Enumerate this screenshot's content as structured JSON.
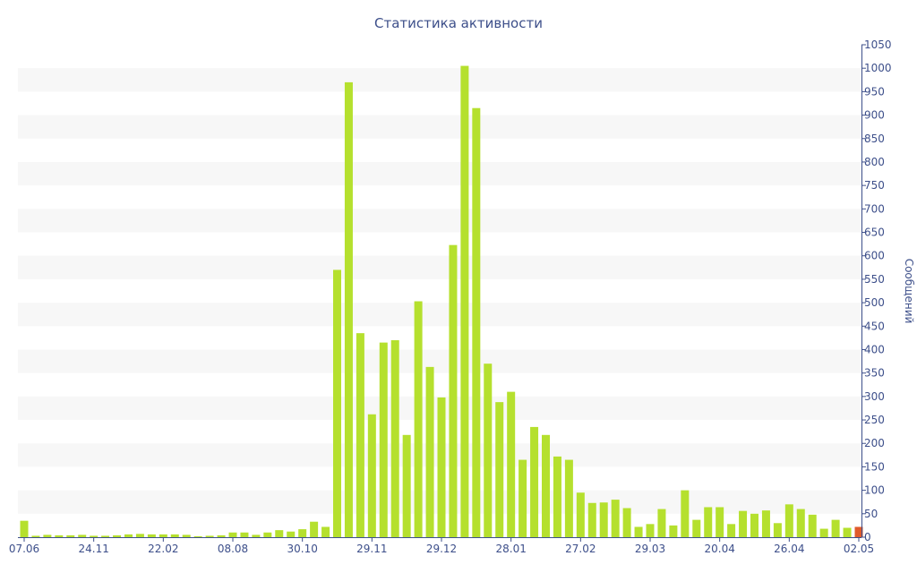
{
  "chart_data": {
    "type": "bar",
    "title": "Статистика активности",
    "ylabel": "Сообщений",
    "xlabel": "",
    "ylim": [
      0,
      1050
    ],
    "y_ticks": [
      0,
      50,
      100,
      150,
      200,
      250,
      300,
      350,
      400,
      450,
      500,
      550,
      600,
      650,
      700,
      750,
      800,
      850,
      900,
      950,
      1000,
      1050
    ],
    "y_axis_side": "right",
    "grid": "alternating horizontal bands",
    "x_tick_labels": [
      "07.06",
      "24.11",
      "22.02",
      "08.08",
      "30.10",
      "29.11",
      "29.12",
      "28.01",
      "27.02",
      "29.03",
      "20.04",
      "26.04",
      "02.05"
    ],
    "x_tick_label_bar_index": [
      0,
      6,
      12,
      18,
      24,
      30,
      36,
      42,
      48,
      54,
      60,
      66,
      72
    ],
    "colors": {
      "bar": "#b5e02e",
      "highlight": "#e05a2b",
      "text": "#3d4f8a",
      "band": "#f7f7f7"
    },
    "highlight_index": 72,
    "values": [
      35,
      3,
      5,
      4,
      4,
      5,
      3,
      3,
      4,
      6,
      7,
      6,
      6,
      6,
      5,
      2,
      3,
      4,
      10,
      10,
      5,
      10,
      15,
      12,
      17,
      33,
      22,
      570,
      970,
      435,
      262,
      415,
      420,
      218,
      503,
      363,
      298,
      623,
      1005,
      915,
      370,
      288,
      310,
      165,
      235,
      218,
      172,
      165,
      95,
      73,
      74,
      80,
      62,
      22,
      28,
      60,
      25,
      100,
      37,
      64,
      64,
      28,
      56,
      50,
      57,
      30,
      70,
      60,
      48,
      18,
      37,
      20,
      22
    ]
  }
}
